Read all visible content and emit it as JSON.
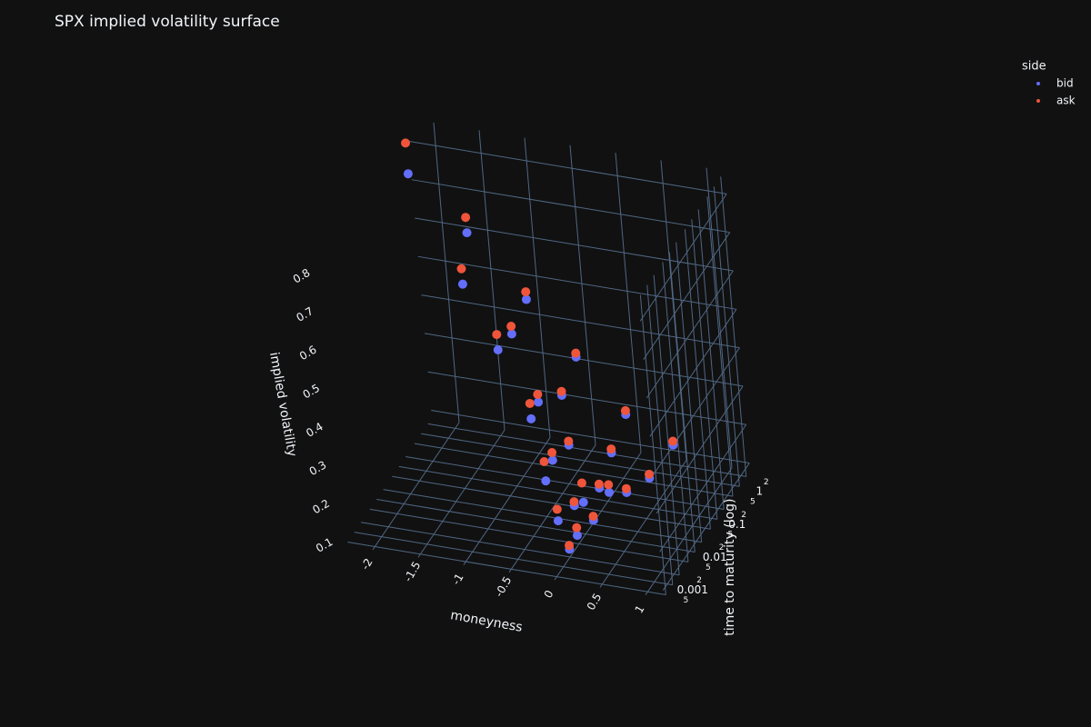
{
  "chart_data": {
    "type": "scatter3d",
    "title": "SPX implied volatility surface",
    "xlabel": "moneyness",
    "ylabel": "time to maturity (log)",
    "zlabel": "implied volatility",
    "legend_title": "side",
    "legend_position": "top-right",
    "log_y": true,
    "grid": true,
    "xlim": [
      -2.3,
      1.2
    ],
    "xticks": [
      -2,
      -1.5,
      -1,
      -0.5,
      0,
      0.5,
      1
    ],
    "ylim": [
      0.0004,
      3
    ],
    "yticks": [
      {
        "value": 0.0005,
        "label": "5"
      },
      0.001,
      {
        "value": 0.002,
        "label": "2"
      },
      {
        "value": 0.005,
        "label": "5"
      },
      0.01,
      {
        "value": 0.02,
        "label": "2"
      },
      {
        "value": 0.05,
        "label": "5"
      },
      0.1,
      {
        "value": 0.2,
        "label": "2"
      },
      {
        "value": 0.5,
        "label": "5"
      },
      1,
      {
        "value": 2,
        "label": "2"
      }
    ],
    "zlim": [
      0.08,
      0.86
    ],
    "zticks": [
      0.1,
      0.2,
      0.3,
      0.4,
      0.5,
      0.6,
      0.7,
      0.8
    ],
    "series": [
      {
        "name": "bid",
        "color": "#636efa",
        "x": [
          -0.2,
          -0.1,
          0,
          0.1,
          0.2,
          -0.5,
          -0.3,
          -0.1,
          0.1,
          0.3,
          -1,
          -0.6,
          -0.3,
          0,
          0.3,
          -1.5,
          -1,
          -0.5,
          0,
          0.4,
          -2.2,
          -1.6,
          -1,
          -0.5,
          0,
          0.5
        ],
        "y": [
          0.002,
          0.002,
          0.002,
          0.002,
          0.002,
          0.01,
          0.01,
          0.01,
          0.01,
          0.01,
          0.05,
          0.05,
          0.05,
          0.05,
          0.05,
          0.2,
          0.2,
          0.2,
          0.2,
          0.2,
          1,
          1,
          1,
          1,
          1,
          1
        ],
        "z": [
          0.27,
          0.17,
          0.1,
          0.14,
          0.23,
          0.36,
          0.26,
          0.15,
          0.12,
          0.2,
          0.46,
          0.34,
          0.24,
          0.14,
          0.14,
          0.56,
          0.45,
          0.31,
          0.18,
          0.13,
          0.76,
          0.63,
          0.48,
          0.35,
          0.22,
          0.16
        ]
      },
      {
        "name": "ask",
        "color": "#ef553b",
        "x": [
          -0.2,
          -0.1,
          0,
          0.1,
          0.2,
          -0.5,
          -0.3,
          -0.1,
          0.1,
          0.3,
          -1,
          -0.6,
          -0.3,
          0,
          0.3,
          -1.5,
          -1,
          -0.5,
          0,
          0.4,
          -2.2,
          -1.6,
          -1,
          -0.5,
          0,
          0.5
        ],
        "y": [
          0.002,
          0.002,
          0.002,
          0.002,
          0.002,
          0.01,
          0.01,
          0.01,
          0.01,
          0.01,
          0.05,
          0.05,
          0.05,
          0.05,
          0.05,
          0.2,
          0.2,
          0.2,
          0.2,
          0.2,
          1,
          1,
          1,
          1,
          1,
          1
        ],
        "z": [
          0.32,
          0.2,
          0.11,
          0.16,
          0.28,
          0.4,
          0.28,
          0.16,
          0.13,
          0.22,
          0.5,
          0.36,
          0.25,
          0.15,
          0.15,
          0.6,
          0.47,
          0.32,
          0.19,
          0.14,
          0.84,
          0.67,
          0.5,
          0.36,
          0.23,
          0.17
        ]
      }
    ]
  }
}
